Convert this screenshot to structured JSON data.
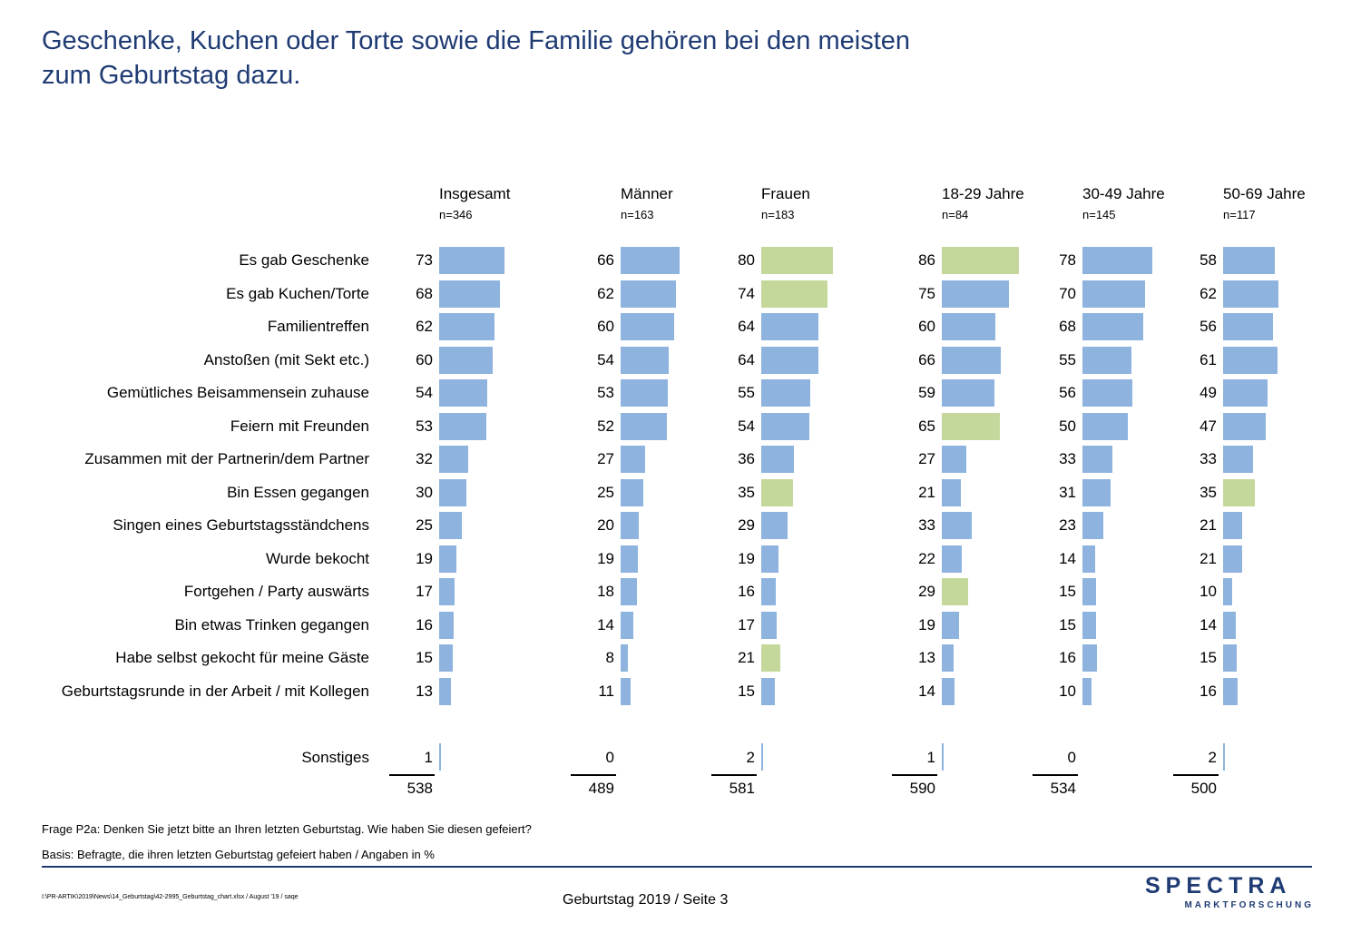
{
  "title": {
    "line1": "Geschenke, Kuchen oder Torte sowie die Familie gehören bei den meisten",
    "line2": "zum Geburtstag dazu."
  },
  "colors": {
    "bar_default": "#8db3de",
    "bar_highlight": "#c5d89c",
    "title": "#1f3b73"
  },
  "chart_data": {
    "type": "bar",
    "orientation": "horizontal",
    "unit": "%",
    "categories": [
      "Es gab Geschenke",
      "Es gab Kuchen/Torte",
      "Familientreffen",
      "Anstoßen (mit Sekt etc.)",
      "Gemütliches Beisammensein zuhause",
      "Feiern mit Freunden",
      "Zusammen mit der Partnerin/dem Partner",
      "Bin Essen gegangen",
      "Singen eines Geburtstagsständchens",
      "Wurde bekocht",
      "Fortgehen / Party auswärts",
      "Bin etwas Trinken gegangen",
      "Habe selbst gekocht für meine Gäste",
      "Geburtstagsrunde in der Arbeit / mit Kollegen"
    ],
    "extra_row_label": "Sonstiges",
    "series": [
      {
        "name": "Insgesamt",
        "n": "n=346",
        "values": [
          73,
          68,
          62,
          60,
          54,
          53,
          32,
          30,
          25,
          19,
          17,
          16,
          15,
          13
        ],
        "highlight": [],
        "other": 1,
        "total": 538
      },
      {
        "name": "Männer",
        "n": "n=163",
        "values": [
          66,
          62,
          60,
          54,
          53,
          52,
          27,
          25,
          20,
          19,
          18,
          14,
          8,
          11
        ],
        "highlight": [],
        "other": 0,
        "total": 489
      },
      {
        "name": "Frauen",
        "n": "n=183",
        "values": [
          80,
          74,
          64,
          64,
          55,
          54,
          36,
          35,
          29,
          19,
          16,
          17,
          21,
          15
        ],
        "highlight": [
          0,
          1,
          7,
          12
        ],
        "other": 2,
        "total": 581
      },
      {
        "name": "18-29 Jahre",
        "n": "n=84",
        "values": [
          86,
          75,
          60,
          66,
          59,
          65,
          27,
          21,
          33,
          22,
          29,
          19,
          13,
          14
        ],
        "highlight": [
          0,
          5,
          10
        ],
        "other": 1,
        "total": 590
      },
      {
        "name": "30-49 Jahre",
        "n": "n=145",
        "values": [
          78,
          70,
          68,
          55,
          56,
          50,
          33,
          31,
          23,
          14,
          15,
          15,
          16,
          10
        ],
        "highlight": [],
        "other": 0,
        "total": 534
      },
      {
        "name": "50-69 Jahre",
        "n": "n=117",
        "values": [
          58,
          62,
          56,
          61,
          49,
          47,
          33,
          35,
          21,
          21,
          10,
          14,
          15,
          16
        ],
        "highlight": [
          7
        ],
        "other": 2,
        "total": 500
      }
    ]
  },
  "notes": {
    "question": "Frage P2a: Denken Sie jetzt bitte an Ihren letzten Geburtstag. Wie haben Sie diesen gefeiert?",
    "basis": "Basis: Befragte, die ihren letzten Geburtstag gefeiert haben / Angaben in %"
  },
  "footer": {
    "filepath": "I:\\PR-ARTIK\\2019\\News\\14_Geburtstag\\42-2995_Geburtstag_chart.xlsx / August '19 / saqe",
    "page": "Geburtstag 2019  /  Seite  3"
  },
  "logo": {
    "main": "SPECTRA",
    "sub": "MARKTFORSCHUNG"
  }
}
